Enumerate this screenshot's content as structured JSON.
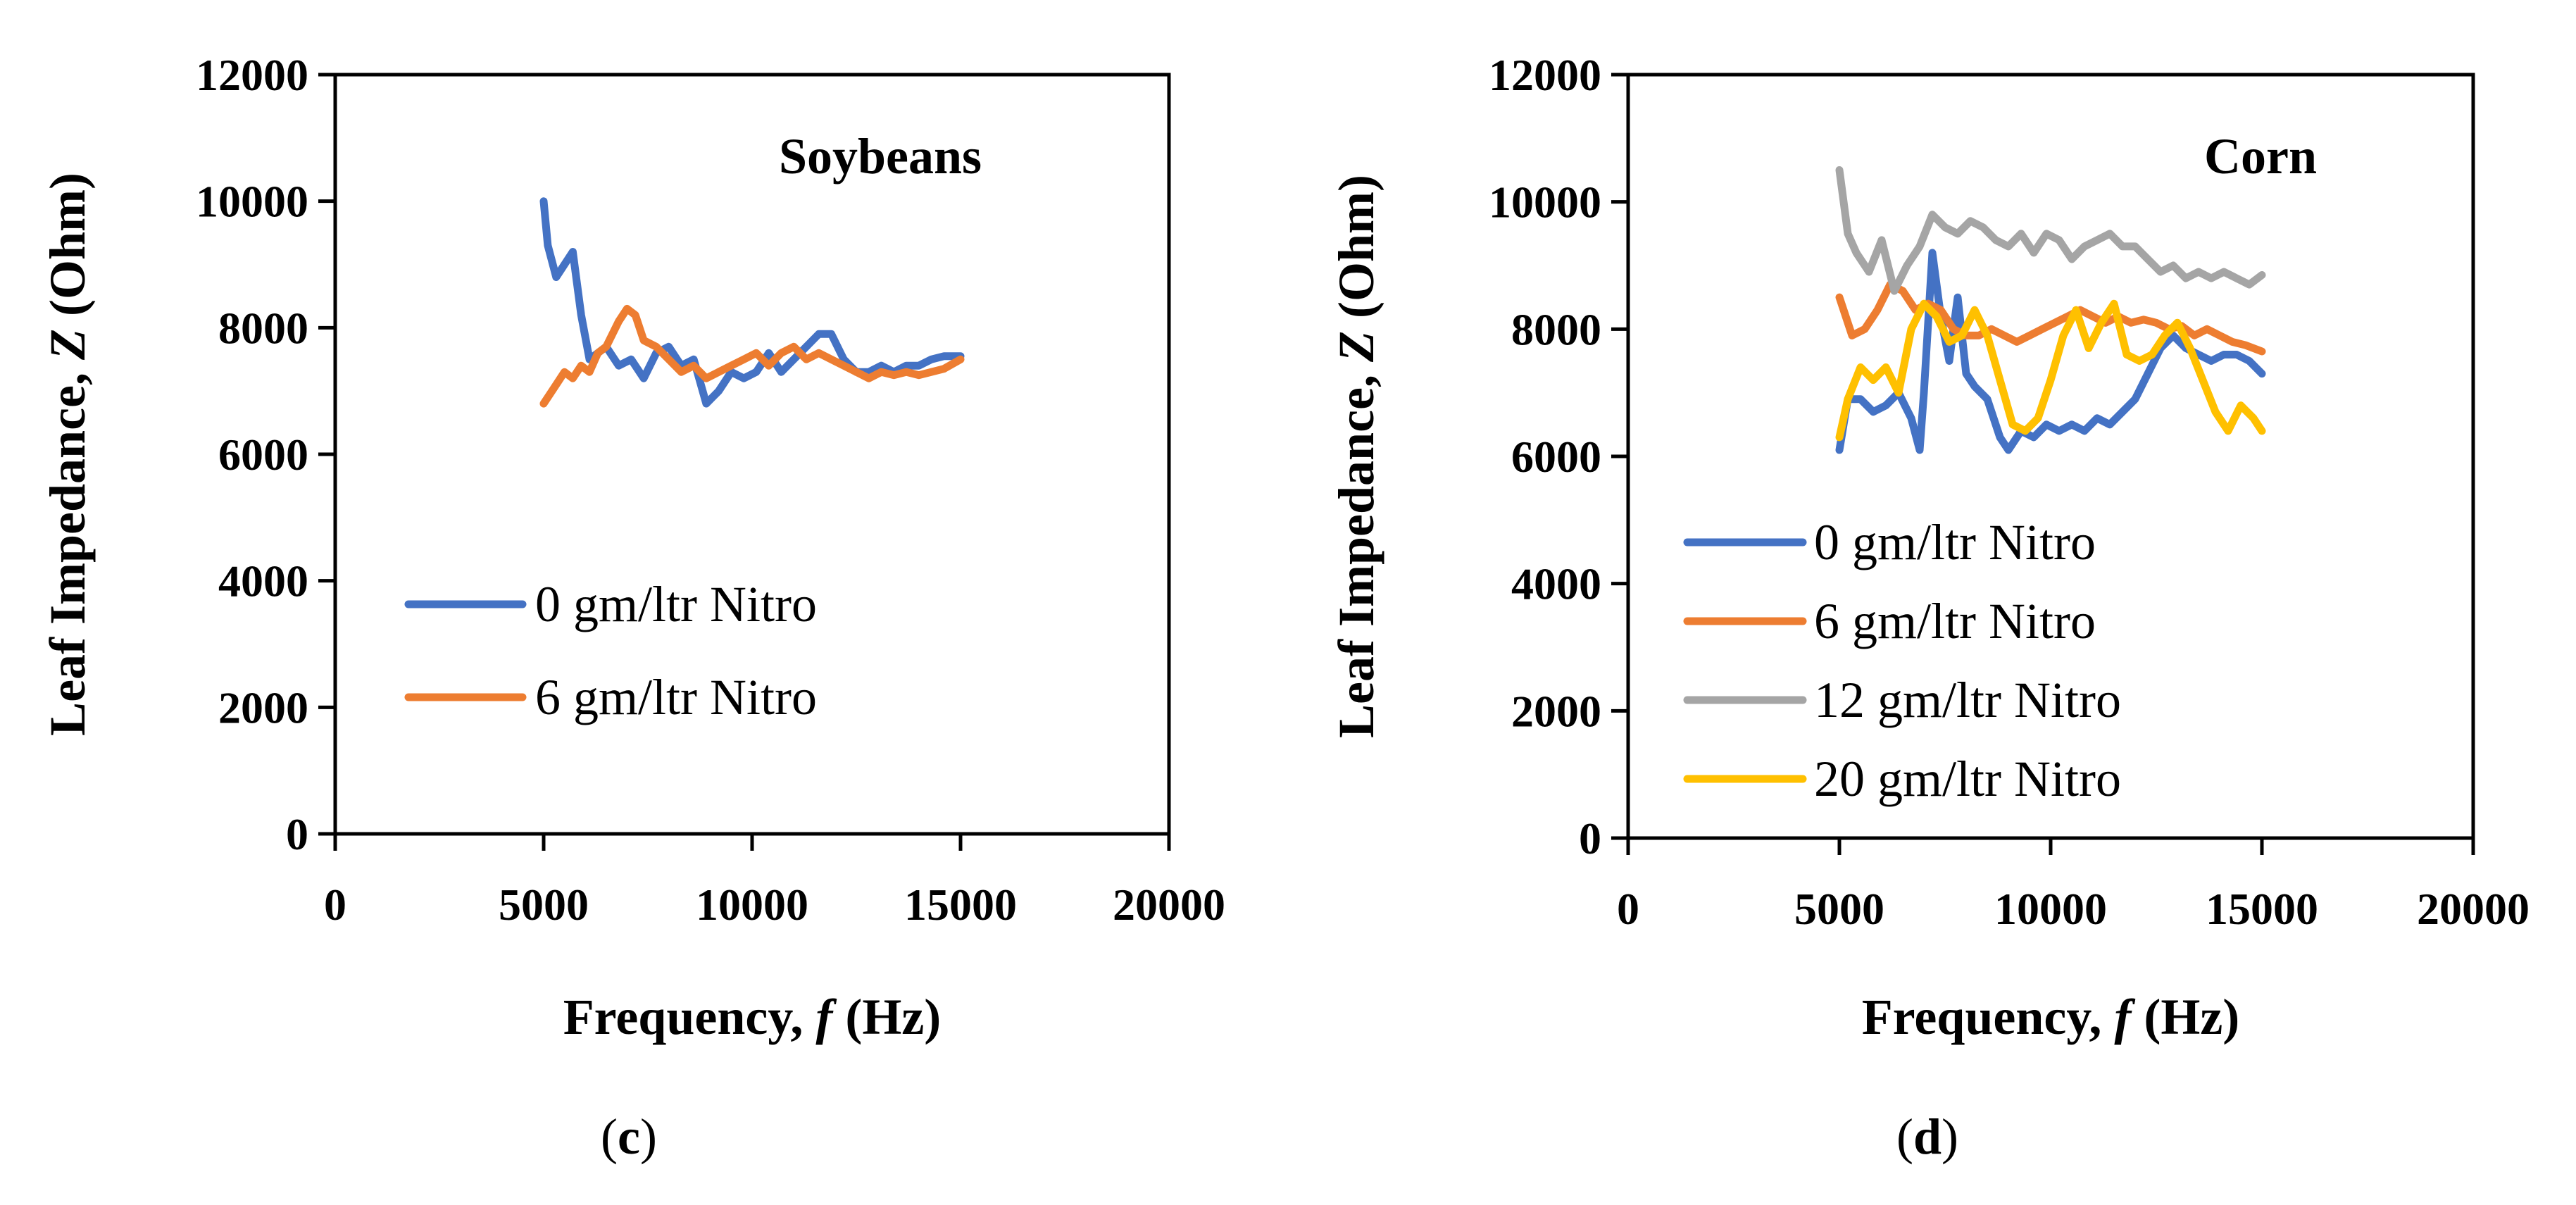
{
  "chart_data": [
    {
      "type": "line",
      "title": "Soybeans",
      "caption": "c",
      "xlabel": "Frequency, f (Hz)",
      "ylabel": "Leaf Impedance, Z (Ohm)",
      "xlim": [
        0,
        20000
      ],
      "ylim": [
        0,
        12000
      ],
      "xticks": [
        0,
        5000,
        10000,
        15000,
        20000
      ],
      "yticks": [
        0,
        2000,
        4000,
        6000,
        8000,
        10000,
        12000
      ],
      "legend_position": "left-middle",
      "series": [
        {
          "name": "0 gm/ltr Nitro",
          "color": "#4472C4",
          "x": [
            5000,
            5100,
            5300,
            5500,
            5700,
            5900,
            6100,
            6300,
            6500,
            6800,
            7100,
            7400,
            7700,
            8000,
            8300,
            8600,
            8900,
            9200,
            9500,
            9800,
            10100,
            10400,
            10700,
            11000,
            11300,
            11600,
            11900,
            12200,
            12500,
            12800,
            13100,
            13400,
            13700,
            14000,
            14300,
            14600,
            15000
          ],
          "y": [
            10000,
            9300,
            8800,
            9000,
            9200,
            8200,
            7500,
            7600,
            7700,
            7400,
            7500,
            7200,
            7600,
            7700,
            7400,
            7500,
            6800,
            7000,
            7300,
            7200,
            7300,
            7600,
            7300,
            7500,
            7700,
            7900,
            7900,
            7500,
            7300,
            7300,
            7400,
            7300,
            7400,
            7400,
            7500,
            7550,
            7550
          ]
        },
        {
          "name": "6 gm/ltr Nitro",
          "color": "#ED7D31",
          "x": [
            5000,
            5100,
            5300,
            5500,
            5700,
            5900,
            6100,
            6300,
            6500,
            6800,
            7000,
            7200,
            7400,
            7700,
            8000,
            8300,
            8600,
            8900,
            9200,
            9500,
            9800,
            10100,
            10400,
            10700,
            11000,
            11300,
            11600,
            11900,
            12200,
            12500,
            12800,
            13100,
            13400,
            13700,
            14000,
            14300,
            14600,
            15000
          ],
          "y": [
            6800,
            6900,
            7100,
            7300,
            7200,
            7400,
            7300,
            7600,
            7700,
            8100,
            8300,
            8200,
            7800,
            7700,
            7500,
            7300,
            7400,
            7200,
            7300,
            7400,
            7500,
            7600,
            7400,
            7600,
            7700,
            7500,
            7600,
            7500,
            7400,
            7300,
            7200,
            7300,
            7250,
            7300,
            7250,
            7300,
            7350,
            7500
          ]
        }
      ]
    },
    {
      "type": "line",
      "title": "Corn",
      "caption": "d",
      "xlabel": "Frequency, f (Hz)",
      "ylabel": "Leaf Impedance, Z (Ohm)",
      "xlim": [
        0,
        20000
      ],
      "ylim": [
        0,
        12000
      ],
      "xticks": [
        0,
        5000,
        10000,
        15000,
        20000
      ],
      "yticks": [
        0,
        2000,
        4000,
        6000,
        8000,
        10000,
        12000
      ],
      "legend_position": "left-lower",
      "series": [
        {
          "name": "0 gm/ltr Nitro",
          "color": "#4472C4",
          "x": [
            5000,
            5200,
            5500,
            5800,
            6100,
            6400,
            6700,
            6900,
            7000,
            7200,
            7400,
            7600,
            7800,
            8000,
            8200,
            8500,
            8800,
            9000,
            9300,
            9600,
            9900,
            10200,
            10500,
            10800,
            11100,
            11400,
            11700,
            12000,
            12300,
            12600,
            12900,
            13200,
            13500,
            13800,
            14100,
            14400,
            14700,
            15000
          ],
          "y": [
            6100,
            6900,
            6900,
            6700,
            6800,
            7000,
            6600,
            6100,
            7000,
            9200,
            8200,
            7500,
            8500,
            7300,
            7100,
            6900,
            6300,
            6100,
            6400,
            6300,
            6500,
            6400,
            6500,
            6400,
            6600,
            6500,
            6700,
            6900,
            7300,
            7700,
            7900,
            7700,
            7600,
            7500,
            7600,
            7600,
            7500,
            7300
          ]
        },
        {
          "name": "6 gm/ltr Nitro",
          "color": "#ED7D31",
          "x": [
            5000,
            5300,
            5600,
            5900,
            6200,
            6500,
            6800,
            7100,
            7400,
            7700,
            8000,
            8300,
            8600,
            8900,
            9200,
            9500,
            9800,
            10100,
            10400,
            10700,
            11000,
            11300,
            11600,
            11900,
            12200,
            12500,
            12800,
            13100,
            13400,
            13700,
            14000,
            14300,
            14600,
            15000
          ],
          "y": [
            8500,
            7900,
            8000,
            8300,
            8700,
            8600,
            8300,
            8400,
            8300,
            8000,
            7900,
            7900,
            8000,
            7900,
            7800,
            7900,
            8000,
            8100,
            8200,
            8300,
            8200,
            8100,
            8200,
            8100,
            8150,
            8100,
            8000,
            8050,
            7900,
            8000,
            7900,
            7800,
            7750,
            7650
          ]
        },
        {
          "name": "12 gm/ltr Nitro",
          "color": "#A5A5A5",
          "x": [
            5000,
            5200,
            5400,
            5700,
            6000,
            6300,
            6600,
            6900,
            7200,
            7500,
            7800,
            8100,
            8400,
            8700,
            9000,
            9300,
            9600,
            9900,
            10200,
            10500,
            10800,
            11100,
            11400,
            11700,
            12000,
            12300,
            12600,
            12900,
            13200,
            13500,
            13800,
            14100,
            14400,
            14700,
            15000
          ],
          "y": [
            10500,
            9500,
            9200,
            8900,
            9400,
            8600,
            9000,
            9300,
            9800,
            9600,
            9500,
            9700,
            9600,
            9400,
            9300,
            9500,
            9200,
            9500,
            9400,
            9100,
            9300,
            9400,
            9500,
            9300,
            9300,
            9100,
            8900,
            9000,
            8800,
            8900,
            8800,
            8900,
            8800,
            8700,
            8850
          ]
        },
        {
          "name": "20 gm/ltr Nitro",
          "color": "#FFC000",
          "x": [
            5000,
            5200,
            5500,
            5800,
            6100,
            6400,
            6700,
            7000,
            7300,
            7600,
            7900,
            8200,
            8500,
            8800,
            9100,
            9400,
            9700,
            10000,
            10300,
            10600,
            10900,
            11200,
            11500,
            11800,
            12100,
            12400,
            12700,
            13000,
            13300,
            13600,
            13900,
            14200,
            14500,
            14800,
            15000
          ],
          "y": [
            6300,
            6900,
            7400,
            7200,
            7400,
            7000,
            8000,
            8400,
            8200,
            7800,
            7900,
            8300,
            7900,
            7200,
            6500,
            6400,
            6600,
            7200,
            7900,
            8300,
            7700,
            8100,
            8400,
            7600,
            7500,
            7600,
            7900,
            8100,
            7700,
            7200,
            6700,
            6400,
            6800,
            6600,
            6400
          ]
        }
      ]
    }
  ],
  "panels": [
    {
      "title": "Soybeans",
      "caption": "c",
      "ylabel_part1": "Leaf Impedance, ",
      "ylabel_var": "Z",
      "ylabel_part2": " (Ohm)",
      "xlabel_part1": "Frequency, ",
      "xlabel_var": "f",
      "xlabel_part2": " (Hz)"
    },
    {
      "title": "Corn",
      "caption": "d",
      "ylabel_part1": "Leaf Impedance, ",
      "ylabel_var": "Z",
      "ylabel_part2": " (Ohm)",
      "xlabel_part1": "Frequency, ",
      "xlabel_var": "f",
      "xlabel_part2": " (Hz)"
    }
  ]
}
